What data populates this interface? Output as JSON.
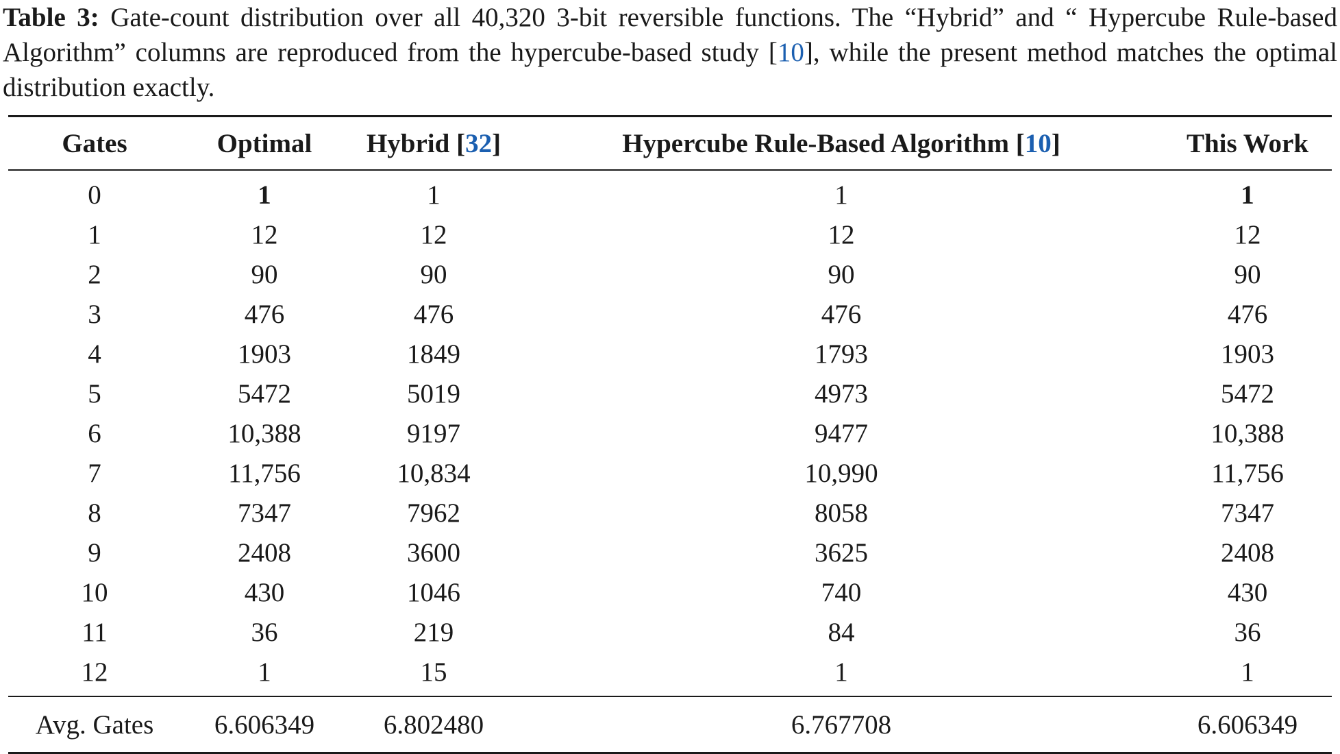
{
  "caption": {
    "label": "Table 3:",
    "text_1": " Gate-count distribution over all 40,320 3-bit reversible functions. The “Hybrid” and “ Hypercube Rule-based Algorithm” columns are reproduced from the hypercube-based study [",
    "ref": "10",
    "text_2": "], while the present method matches the optimal distribution exactly."
  },
  "table": {
    "headers": {
      "gates": "Gates",
      "optimal": "Optimal",
      "hybrid": "Hybrid",
      "hybrid_ref": "32",
      "hypercube": "Hypercube Rule-Based Algorithm",
      "hypercube_ref": "10",
      "this_work": "This Work"
    },
    "rows": [
      {
        "gates": "0",
        "optimal": "1",
        "hybrid": "1",
        "hypercube": "1",
        "this_work": "1"
      },
      {
        "gates": "1",
        "optimal": "12",
        "hybrid": "12",
        "hypercube": "12",
        "this_work": "12"
      },
      {
        "gates": "2",
        "optimal": "90",
        "hybrid": "90",
        "hypercube": "90",
        "this_work": "90"
      },
      {
        "gates": "3",
        "optimal": "476",
        "hybrid": "476",
        "hypercube": "476",
        "this_work": "476"
      },
      {
        "gates": "4",
        "optimal": "1903",
        "hybrid": "1849",
        "hypercube": "1793",
        "this_work": "1903"
      },
      {
        "gates": "5",
        "optimal": "5472",
        "hybrid": "5019",
        "hypercube": "4973",
        "this_work": "5472"
      },
      {
        "gates": "6",
        "optimal": "10,388",
        "hybrid": "9197",
        "hypercube": "9477",
        "this_work": "10,388"
      },
      {
        "gates": "7",
        "optimal": "11,756",
        "hybrid": "10,834",
        "hypercube": "10,990",
        "this_work": "11,756"
      },
      {
        "gates": "8",
        "optimal": "7347",
        "hybrid": "7962",
        "hypercube": "8058",
        "this_work": "7347"
      },
      {
        "gates": "9",
        "optimal": "2408",
        "hybrid": "3600",
        "hypercube": "3625",
        "this_work": "2408"
      },
      {
        "gates": "10",
        "optimal": "430",
        "hybrid": "1046",
        "hypercube": "740",
        "this_work": "430"
      },
      {
        "gates": "11",
        "optimal": "36",
        "hybrid": "219",
        "hypercube": "84",
        "this_work": "36"
      },
      {
        "gates": "12",
        "optimal": "1",
        "hybrid": "15",
        "hypercube": "1",
        "this_work": "1"
      }
    ],
    "average": {
      "label": "Avg. Gates",
      "optimal": "6.606349",
      "hybrid": "6.802480",
      "hypercube": "6.767708",
      "this_work": "6.606349"
    }
  }
}
